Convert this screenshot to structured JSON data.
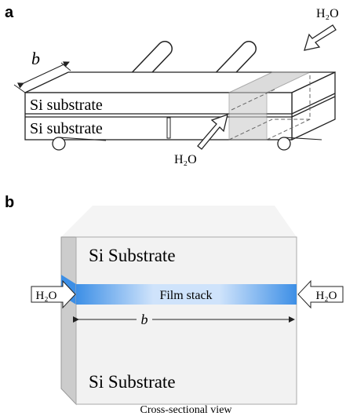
{
  "panel_a": {
    "label": "a",
    "dimension": "b",
    "layers": [
      "Si substrate",
      "Si substrate"
    ],
    "water_labels": [
      "H₂O",
      "H₂O"
    ]
  },
  "panel_b": {
    "label": "b",
    "layers": [
      "Si Substrate",
      "Si Substrate"
    ],
    "film": "Film stack",
    "width_label": "b",
    "water_labels": [
      "H₂O",
      "H₂O"
    ],
    "caption": "Cross-sectional view"
  }
}
